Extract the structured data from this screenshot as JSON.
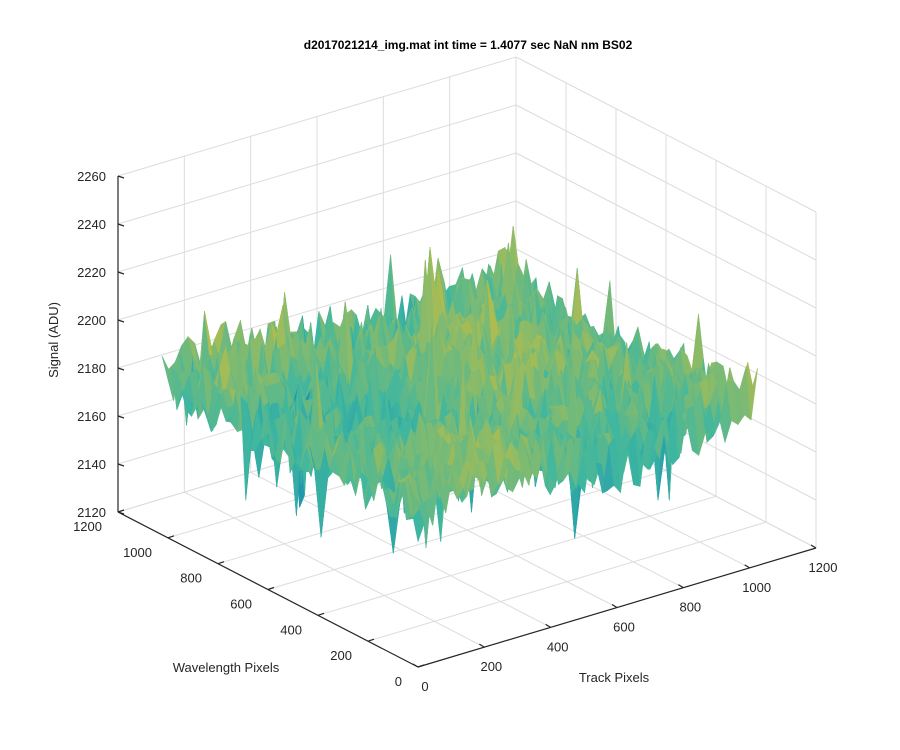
{
  "chart_data": {
    "type": "surface",
    "title": "d2017021214_img.mat int time = 1.4077 sec  NaN nm BS02",
    "xlabel": "Track Pixels",
    "ylabel": "Wavelength Pixels",
    "zlabel": "Signal (ADU)",
    "xlim": [
      0,
      1200
    ],
    "ylim": [
      0,
      1200
    ],
    "zlim": [
      2120,
      2260
    ],
    "xticks": [
      "0",
      "200",
      "400",
      "600",
      "800",
      "1000",
      "1200"
    ],
    "yticks": [
      "0",
      "200",
      "400",
      "600",
      "800",
      "1000",
      "1200"
    ],
    "zticks": [
      "2120",
      "2140",
      "2160",
      "2180",
      "2200",
      "2220",
      "2240",
      "2260"
    ],
    "grid": true,
    "colormap": "parula",
    "surface_extent": {
      "x": [
        0,
        1024
      ],
      "y": [
        0,
        1024
      ]
    },
    "signal_mean": 2185,
    "signal_range": [
      2125,
      2245
    ],
    "colors": {
      "low": "#0072bd",
      "mid": "#3fb7a0",
      "high": "#f2c01d"
    }
  }
}
